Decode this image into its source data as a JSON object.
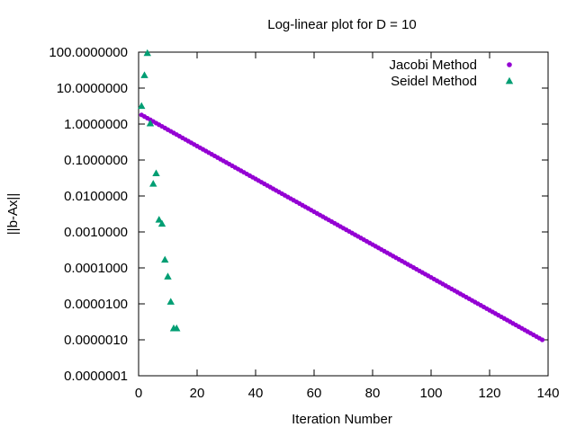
{
  "chart_data": {
    "type": "scatter",
    "title": "Log-linear plot for D = 10",
    "xlabel": "Iteration Number",
    "ylabel": "||b-Ax||",
    "xlim": [
      0,
      140
    ],
    "ylim": [
      1e-07,
      100
    ],
    "yscale": "log",
    "grid": false,
    "legend_position": "top-right",
    "x_ticks": [
      "0",
      "20",
      "40",
      "60",
      "80",
      "100",
      "120",
      "140"
    ],
    "y_ticks": [
      "0.0000001",
      "0.0000010",
      "0.0000100",
      "0.0001000",
      "0.0010000",
      "0.0100000",
      "0.1000000",
      "1.0000000",
      "10.0000000",
      "100.0000000"
    ],
    "series": [
      {
        "name": "Jacobi Method",
        "color": "#9400d3",
        "marker": "filled-circle",
        "x_start": 1,
        "x_end": 138,
        "y_start": 1.8,
        "y_end": 1e-06
      },
      {
        "name": "Seidel Method",
        "color": "#009e73",
        "marker": "filled-triangle",
        "x": [
          1,
          2,
          3,
          4,
          5,
          6,
          7,
          8,
          9,
          10,
          11,
          12,
          13
        ],
        "y": [
          3.2,
          23,
          95,
          1.05,
          0.022,
          0.043,
          0.0022,
          0.0017,
          0.00017,
          5.8e-05,
          1.15e-05,
          2.1e-06,
          2.1e-06
        ]
      }
    ]
  }
}
